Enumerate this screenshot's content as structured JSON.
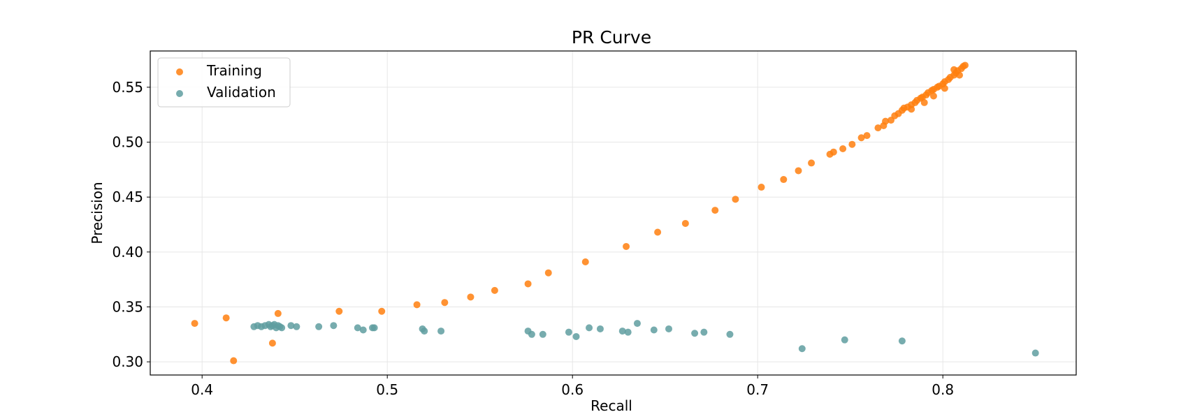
{
  "chart_data": {
    "type": "scatter",
    "title": "PR Curve",
    "xlabel": "Recall",
    "ylabel": "Precision",
    "xlim": [
      0.372,
      0.872
    ],
    "ylim": [
      0.288,
      0.583
    ],
    "xticks": [
      0.4,
      0.5,
      0.6,
      0.7,
      0.8
    ],
    "xtick_labels": [
      "0.4",
      "0.5",
      "0.6",
      "0.7",
      "0.8"
    ],
    "yticks": [
      0.3,
      0.35,
      0.4,
      0.45,
      0.5,
      0.55
    ],
    "ytick_labels": [
      "0.30",
      "0.35",
      "0.40",
      "0.45",
      "0.50",
      "0.55"
    ],
    "grid": true,
    "legend_position": "upper-left",
    "series": [
      {
        "name": "Training",
        "color": "#ff7f0e",
        "points": [
          [
            0.396,
            0.335
          ],
          [
            0.413,
            0.34
          ],
          [
            0.417,
            0.301
          ],
          [
            0.438,
            0.317
          ],
          [
            0.441,
            0.344
          ],
          [
            0.474,
            0.346
          ],
          [
            0.497,
            0.346
          ],
          [
            0.516,
            0.352
          ],
          [
            0.531,
            0.354
          ],
          [
            0.545,
            0.359
          ],
          [
            0.558,
            0.365
          ],
          [
            0.576,
            0.371
          ],
          [
            0.587,
            0.381
          ],
          [
            0.607,
            0.391
          ],
          [
            0.629,
            0.405
          ],
          [
            0.646,
            0.418
          ],
          [
            0.661,
            0.426
          ],
          [
            0.677,
            0.438
          ],
          [
            0.688,
            0.448
          ],
          [
            0.702,
            0.459
          ],
          [
            0.714,
            0.466
          ],
          [
            0.722,
            0.474
          ],
          [
            0.729,
            0.481
          ],
          [
            0.739,
            0.489
          ],
          [
            0.741,
            0.491
          ],
          [
            0.746,
            0.494
          ],
          [
            0.751,
            0.498
          ],
          [
            0.756,
            0.504
          ],
          [
            0.759,
            0.506
          ],
          [
            0.765,
            0.513
          ],
          [
            0.768,
            0.515
          ],
          [
            0.769,
            0.519
          ],
          [
            0.772,
            0.52
          ],
          [
            0.774,
            0.524
          ],
          [
            0.776,
            0.526
          ],
          [
            0.778,
            0.529
          ],
          [
            0.779,
            0.531
          ],
          [
            0.781,
            0.532
          ],
          [
            0.783,
            0.534
          ],
          [
            0.785,
            0.536
          ],
          [
            0.786,
            0.538
          ],
          [
            0.788,
            0.54
          ],
          [
            0.789,
            0.541
          ],
          [
            0.791,
            0.543
          ],
          [
            0.792,
            0.545
          ],
          [
            0.794,
            0.547
          ],
          [
            0.795,
            0.548
          ],
          [
            0.797,
            0.55
          ],
          [
            0.798,
            0.551
          ],
          [
            0.8,
            0.553
          ],
          [
            0.801,
            0.555
          ],
          [
            0.803,
            0.557
          ],
          [
            0.804,
            0.559
          ],
          [
            0.806,
            0.561
          ],
          [
            0.807,
            0.563
          ],
          [
            0.808,
            0.565
          ],
          [
            0.81,
            0.567
          ],
          [
            0.811,
            0.569
          ],
          [
            0.812,
            0.57
          ],
          [
            0.806,
            0.566
          ],
          [
            0.783,
            0.53
          ],
          [
            0.79,
            0.536
          ],
          [
            0.795,
            0.542
          ],
          [
            0.801,
            0.549
          ],
          [
            0.809,
            0.561
          ]
        ]
      },
      {
        "name": "Validation",
        "color": "#5f9ea0",
        "points": [
          [
            0.428,
            0.332
          ],
          [
            0.43,
            0.333
          ],
          [
            0.432,
            0.332
          ],
          [
            0.434,
            0.333
          ],
          [
            0.436,
            0.334
          ],
          [
            0.437,
            0.332
          ],
          [
            0.438,
            0.333
          ],
          [
            0.439,
            0.334
          ],
          [
            0.44,
            0.331
          ],
          [
            0.441,
            0.333
          ],
          [
            0.442,
            0.332
          ],
          [
            0.443,
            0.331
          ],
          [
            0.448,
            0.333
          ],
          [
            0.451,
            0.332
          ],
          [
            0.463,
            0.332
          ],
          [
            0.471,
            0.333
          ],
          [
            0.484,
            0.331
          ],
          [
            0.487,
            0.329
          ],
          [
            0.492,
            0.331
          ],
          [
            0.493,
            0.331
          ],
          [
            0.519,
            0.33
          ],
          [
            0.52,
            0.328
          ],
          [
            0.529,
            0.328
          ],
          [
            0.576,
            0.328
          ],
          [
            0.578,
            0.325
          ],
          [
            0.584,
            0.325
          ],
          [
            0.598,
            0.327
          ],
          [
            0.602,
            0.323
          ],
          [
            0.609,
            0.331
          ],
          [
            0.615,
            0.33
          ],
          [
            0.627,
            0.328
          ],
          [
            0.63,
            0.327
          ],
          [
            0.635,
            0.335
          ],
          [
            0.644,
            0.329
          ],
          [
            0.652,
            0.33
          ],
          [
            0.666,
            0.326
          ],
          [
            0.671,
            0.327
          ],
          [
            0.685,
            0.325
          ],
          [
            0.724,
            0.312
          ],
          [
            0.747,
            0.32
          ],
          [
            0.778,
            0.319
          ],
          [
            0.85,
            0.308
          ]
        ]
      }
    ]
  }
}
